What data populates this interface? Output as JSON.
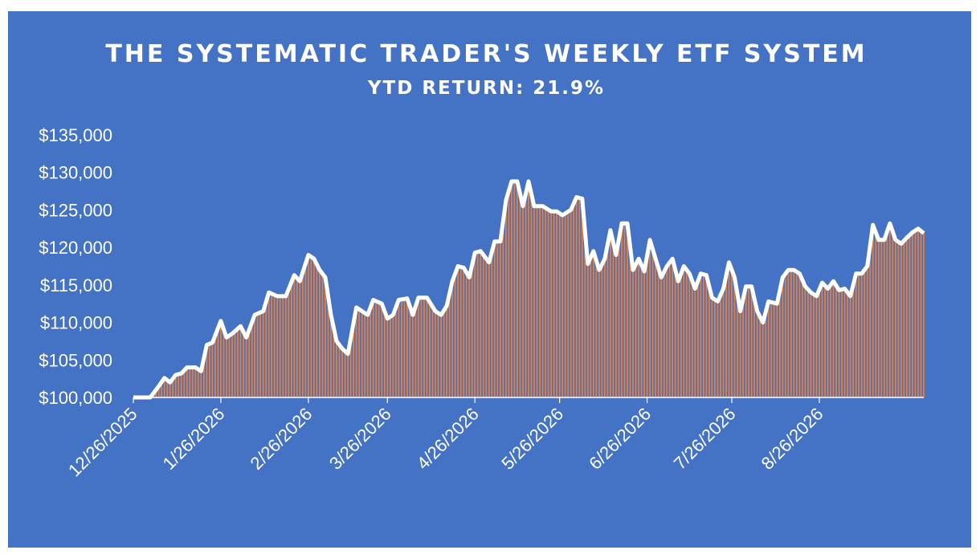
{
  "header": {
    "title": "THE SYSTEMATIC TRADER'S WEEKLY ETF SYSTEM",
    "subtitle": "YTD RETURN: 21.9%"
  },
  "colors": {
    "background": "#4472C4",
    "line": "#FFFFFF",
    "bars": "#ED7D31"
  },
  "chart_data": {
    "type": "line",
    "title": "THE SYSTEMATIC TRADER'S WEEKLY ETF SYSTEM",
    "subtitle": "YTD RETURN: 21.9%",
    "ylim": [
      100000,
      135000
    ],
    "y_ticks": [
      "$100,000",
      "$105,000",
      "$110,000",
      "$115,000",
      "$120,000",
      "$125,000",
      "$130,000",
      "$135,000"
    ],
    "x_ticks": [
      "12/26/2025",
      "1/26/2026",
      "2/26/2026",
      "3/26/2026",
      "4/26/2026",
      "5/26/2026",
      "6/26/2026",
      "7/26/2026",
      "8/26/2026"
    ],
    "grid": false,
    "legend": "none",
    "series": [
      {
        "values": [
          [
            0,
            100000
          ],
          [
            6,
            100000
          ],
          [
            9,
            101500
          ],
          [
            11,
            102600
          ],
          [
            13,
            102000
          ],
          [
            15,
            103000
          ],
          [
            17,
            103200
          ],
          [
            19,
            104000
          ],
          [
            22,
            104000
          ],
          [
            24,
            103500
          ],
          [
            26,
            107000
          ],
          [
            28,
            107300
          ],
          [
            31,
            110200
          ],
          [
            33,
            108000
          ],
          [
            35,
            108500
          ],
          [
            38,
            109500
          ],
          [
            40,
            108000
          ],
          [
            43,
            111000
          ],
          [
            46,
            111500
          ],
          [
            48,
            114000
          ],
          [
            51,
            113500
          ],
          [
            54,
            113500
          ],
          [
            57,
            116300
          ],
          [
            59,
            115500
          ],
          [
            62,
            119000
          ],
          [
            64,
            118500
          ],
          [
            66,
            117000
          ],
          [
            68,
            116000
          ],
          [
            70,
            111000
          ],
          [
            72,
            107500
          ],
          [
            74,
            106500
          ],
          [
            76,
            105800
          ],
          [
            79,
            112000
          ],
          [
            81,
            111500
          ],
          [
            83,
            111000
          ],
          [
            85,
            113000
          ],
          [
            88,
            112500
          ],
          [
            90,
            110500
          ],
          [
            92,
            111000
          ],
          [
            94,
            113000
          ],
          [
            97,
            113200
          ],
          [
            99,
            111000
          ],
          [
            101,
            113300
          ],
          [
            104,
            113300
          ],
          [
            107,
            111500
          ],
          [
            109,
            111000
          ],
          [
            111,
            112200
          ],
          [
            113,
            115500
          ],
          [
            115,
            117500
          ],
          [
            117,
            117300
          ],
          [
            119,
            116000
          ],
          [
            121,
            119300
          ],
          [
            123,
            119500
          ],
          [
            126,
            118000
          ],
          [
            128,
            120800
          ],
          [
            130,
            120800
          ],
          [
            132,
            126300
          ],
          [
            134,
            128800
          ],
          [
            136,
            128800
          ],
          [
            138,
            125500
          ],
          [
            140,
            128800
          ],
          [
            142,
            125500
          ],
          [
            145,
            125500
          ],
          [
            148,
            124800
          ],
          [
            150,
            124800
          ],
          [
            152,
            124300
          ],
          [
            155,
            125000
          ],
          [
            157,
            126700
          ],
          [
            159,
            126500
          ],
          [
            161,
            117800
          ],
          [
            163,
            119500
          ],
          [
            165,
            117000
          ],
          [
            167,
            118500
          ],
          [
            169,
            122300
          ],
          [
            171,
            119000
          ],
          [
            173,
            123200
          ],
          [
            175,
            123200
          ],
          [
            177,
            117000
          ],
          [
            179,
            118500
          ],
          [
            181,
            116800
          ],
          [
            183,
            121000
          ],
          [
            185,
            118500
          ],
          [
            187,
            116000
          ],
          [
            189,
            117500
          ],
          [
            191,
            118500
          ],
          [
            193,
            115500
          ],
          [
            195,
            117500
          ],
          [
            197,
            116500
          ],
          [
            199,
            114500
          ],
          [
            201,
            116500
          ],
          [
            203,
            116300
          ],
          [
            205,
            113300
          ],
          [
            207,
            112800
          ],
          [
            209,
            114500
          ],
          [
            211,
            118000
          ],
          [
            213,
            116000
          ],
          [
            215,
            111500
          ],
          [
            217,
            114800
          ],
          [
            219,
            114800
          ],
          [
            221,
            111500
          ],
          [
            223,
            110000
          ],
          [
            225,
            112800
          ],
          [
            228,
            112500
          ],
          [
            230,
            116000
          ],
          [
            232,
            117000
          ],
          [
            234,
            117000
          ],
          [
            236,
            116500
          ],
          [
            238,
            114800
          ],
          [
            240,
            114000
          ],
          [
            242,
            113500
          ],
          [
            244,
            115300
          ],
          [
            246,
            114500
          ],
          [
            248,
            115500
          ],
          [
            250,
            114300
          ],
          [
            252,
            114500
          ],
          [
            254,
            113500
          ],
          [
            256,
            116500
          ],
          [
            258,
            116500
          ],
          [
            260,
            117500
          ],
          [
            262,
            123000
          ],
          [
            264,
            121000
          ],
          [
            266,
            121000
          ],
          [
            268,
            123200
          ],
          [
            270,
            121000
          ],
          [
            272,
            120500
          ],
          [
            274,
            121300
          ],
          [
            276,
            122000
          ],
          [
            278,
            122500
          ],
          [
            280,
            121900
          ]
        ]
      }
    ]
  }
}
